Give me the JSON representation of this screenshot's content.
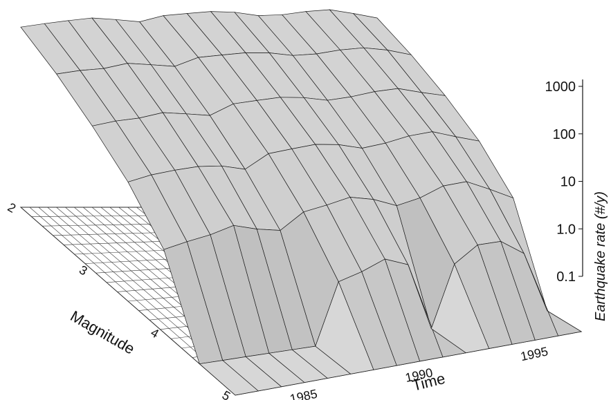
{
  "chart_data": {
    "type": "surface",
    "title": "",
    "xlabel": "Time",
    "ylabel": "Magnitude",
    "zlabel": "Earthquake rate (#/y)",
    "z_scale": "log",
    "grid": true,
    "x_ticks": [
      "1985",
      "1990",
      "1995"
    ],
    "y_ticks": [
      "2",
      "3",
      "4",
      "5"
    ],
    "z_ticks": [
      "1000",
      "100",
      "10",
      "1.0",
      "0.1"
    ],
    "x_range": [
      1982,
      1997
    ],
    "y_range": [
      2,
      5
    ],
    "z_range": [
      0.1,
      1000
    ],
    "time_samples": [
      1982,
      1983,
      1984,
      1985,
      1986,
      1987,
      1988,
      1989,
      1990,
      1991,
      1992,
      1993,
      1994,
      1995,
      1996,
      1997
    ],
    "magnitude_samples": [
      2.0,
      2.5,
      3.0,
      3.5,
      4.0,
      4.5,
      5.0
    ],
    "rate": [
      [
        300,
        150,
        60,
        20,
        4,
        0.1,
        0.1
      ],
      [
        350,
        170,
        70,
        25,
        5,
        0.1,
        0.1
      ],
      [
        400,
        180,
        75,
        28,
        6,
        0.1,
        0.1
      ],
      [
        450,
        220,
        90,
        30,
        8,
        0.1,
        0.1
      ],
      [
        420,
        200,
        80,
        28,
        6,
        0.1,
        0.1
      ],
      [
        380,
        180,
        70,
        22,
        5,
        0.1,
        0.1
      ],
      [
        500,
        260,
        110,
        40,
        10,
        1.5,
        0.1
      ],
      [
        550,
        280,
        120,
        45,
        12,
        2,
        0.1
      ],
      [
        600,
        300,
        130,
        50,
        15,
        3,
        0.1
      ],
      [
        580,
        290,
        120,
        45,
        12,
        2,
        0.1
      ],
      [
        500,
        250,
        100,
        35,
        8,
        0.1,
        0.1
      ],
      [
        520,
        260,
        110,
        40,
        10,
        1.5,
        0.1
      ],
      [
        600,
        300,
        130,
        50,
        15,
        3,
        0.1
      ],
      [
        650,
        320,
        140,
        55,
        16,
        3,
        0.1
      ],
      [
        550,
        280,
        110,
        40,
        10,
        1.5,
        0.1
      ],
      [
        450,
        220,
        90,
        30,
        6,
        0.1,
        0.1
      ]
    ]
  }
}
